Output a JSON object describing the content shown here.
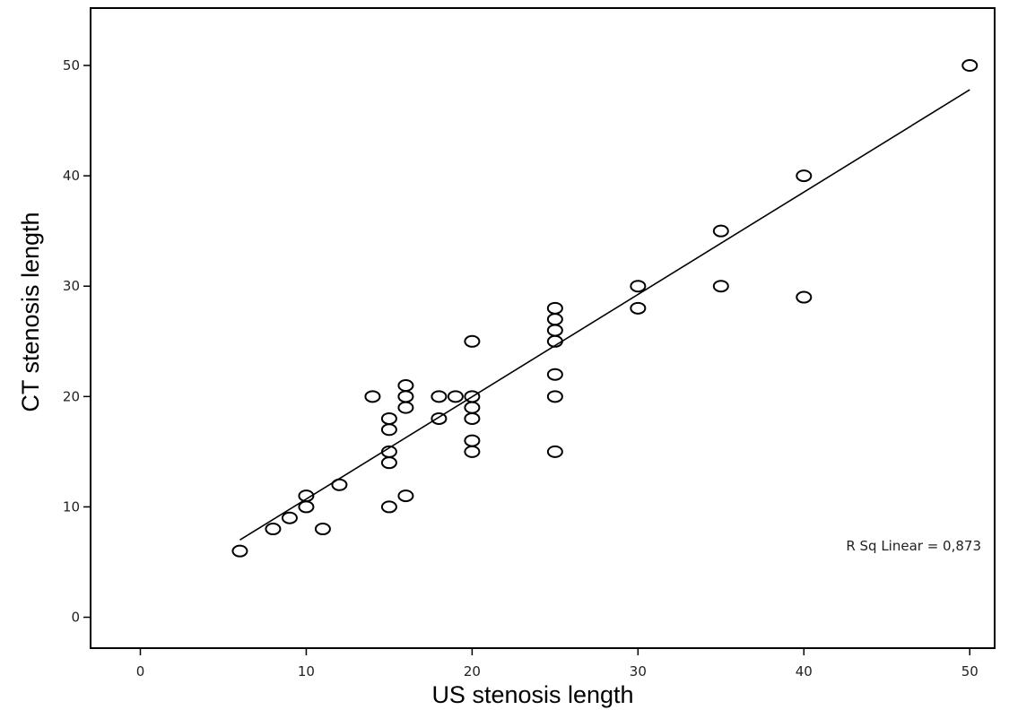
{
  "chart_data": {
    "type": "scatter",
    "title": "",
    "xlabel": "US stenosis length",
    "ylabel": "CT stenosis length",
    "xlim": [
      -3,
      51.5
    ],
    "ylim": [
      -2.8,
      55.2
    ],
    "xticks": [
      0,
      10,
      20,
      30,
      40,
      50
    ],
    "yticks": [
      0,
      10,
      20,
      30,
      40,
      50
    ],
    "grid": false,
    "legend": "none",
    "annotation": "R Sq Linear = 0,873",
    "fit_line": {
      "x": [
        6,
        50
      ],
      "y": [
        7.0,
        47.8
      ]
    },
    "points": [
      [
        6,
        6
      ],
      [
        8,
        8
      ],
      [
        9,
        9
      ],
      [
        10,
        10
      ],
      [
        10,
        11
      ],
      [
        11,
        8
      ],
      [
        12,
        12
      ],
      [
        14,
        20
      ],
      [
        15,
        10
      ],
      [
        15,
        14
      ],
      [
        15,
        15
      ],
      [
        15,
        17
      ],
      [
        15,
        18
      ],
      [
        16,
        11
      ],
      [
        16,
        19
      ],
      [
        16,
        20
      ],
      [
        16,
        21
      ],
      [
        18,
        18
      ],
      [
        18,
        20
      ],
      [
        19,
        20
      ],
      [
        20,
        15
      ],
      [
        20,
        16
      ],
      [
        20,
        18
      ],
      [
        20,
        19
      ],
      [
        20,
        20
      ],
      [
        20,
        25
      ],
      [
        25,
        15
      ],
      [
        25,
        20
      ],
      [
        25,
        22
      ],
      [
        25,
        25
      ],
      [
        25,
        26
      ],
      [
        25,
        27
      ],
      [
        25,
        28
      ],
      [
        30,
        28
      ],
      [
        30,
        30
      ],
      [
        35,
        30
      ],
      [
        35,
        35
      ],
      [
        40,
        29
      ],
      [
        40,
        40
      ],
      [
        50,
        50
      ]
    ]
  }
}
